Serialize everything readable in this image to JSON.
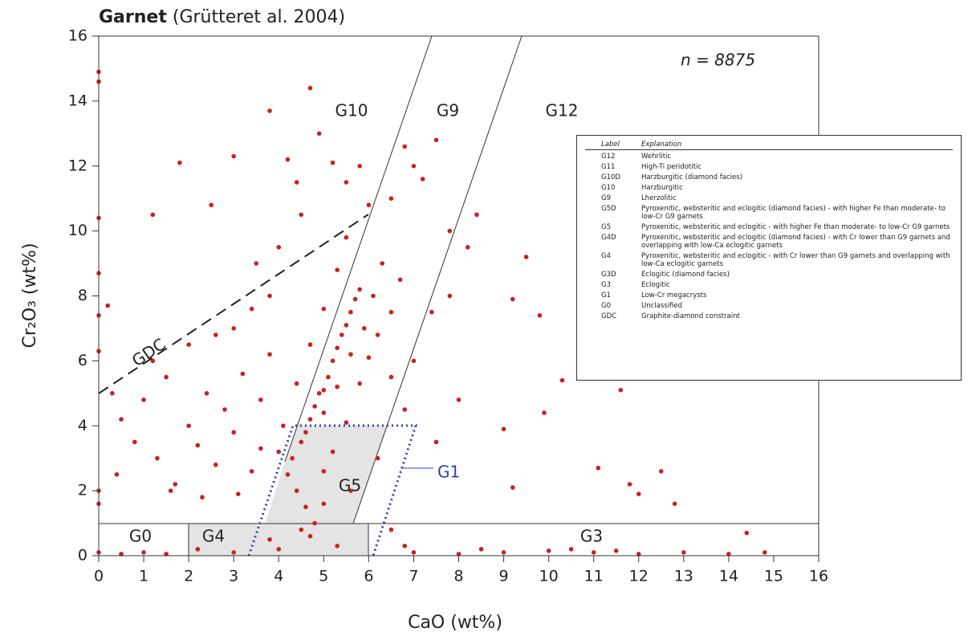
{
  "chart_data": {
    "type": "scatter",
    "title": "Garnet",
    "subtitle": "(Grütteret al. 2004)",
    "annotation": "n = 8875",
    "x_label": "CaO (wt%)",
    "y_label": "Cr₂O₃ (wt%)",
    "color": "#cc1f1f",
    "xlim": [
      0,
      16
    ],
    "ylim": [
      0,
      16
    ],
    "xticks": [
      0,
      1,
      2,
      3,
      4,
      5,
      6,
      7,
      8,
      9,
      10,
      11,
      12,
      13,
      14,
      15,
      16
    ],
    "yticks": [
      0,
      2,
      4,
      6,
      8,
      10,
      12,
      14,
      16
    ],
    "region_labels": [
      "G10",
      "G9",
      "G12",
      "GDC",
      "G5",
      "G1",
      "G0",
      "G4",
      "G3"
    ],
    "x": [
      4.5,
      4.7,
      5.0,
      5.2,
      5.4,
      5.6,
      5.8,
      4.3,
      4.8,
      5.1,
      5.3,
      5.5,
      5.7,
      4.6,
      4.9,
      5.0,
      5.3,
      5.6,
      5.9,
      6.1,
      6.3,
      4.2,
      4.4,
      4.6,
      4.8,
      5.0,
      5.2,
      5.5,
      5.8,
      6.0,
      6.2,
      6.5,
      6.7,
      4.0,
      4.1,
      4.4,
      4.7,
      5.0,
      5.3,
      5.5,
      0.5,
      0.8,
      1.0,
      1.3,
      1.5,
      1.7,
      2.0,
      2.2,
      2.4,
      2.6,
      2.8,
      3.0,
      3.2,
      3.4,
      3.6,
      3.8,
      1.2,
      2.0,
      2.6,
      3.0,
      3.4,
      3.8,
      1.6,
      0.4,
      0.3,
      2.3,
      3.1,
      3.6,
      3.5,
      4.0,
      4.5,
      4.2,
      4.7,
      3.0,
      2.5,
      4.9,
      5.5,
      5.8,
      6.5,
      7.0,
      7.2,
      6.8,
      7.5,
      7.8,
      6.0,
      1.2,
      1.8,
      3.8,
      4.4,
      5.2,
      6.5,
      7.0,
      7.4,
      6.8,
      7.8,
      8.2,
      8.4,
      7.5,
      8.0,
      6.2,
      9.2,
      9.5,
      9.8,
      10.3,
      11.0,
      11.6,
      9.0,
      9.9,
      11.1,
      11.8,
      12.5,
      12.8,
      9.2,
      12.0,
      4.7,
      5.0,
      5.3,
      4.5,
      5.6,
      3.8,
      6.5,
      2.2,
      3.0,
      4.0,
      0,
      0.5,
      1.0,
      1.5,
      7.0,
      8.0,
      9.0,
      10.0,
      10.5,
      11.0,
      11.5,
      12.0,
      13.0,
      14.0,
      14.4,
      14.8,
      8.5,
      6.8,
      0,
      0,
      0,
      0,
      0,
      0,
      0,
      0,
      0.2
    ],
    "values": [
      3.5,
      4.2,
      5.1,
      6.0,
      6.8,
      7.5,
      8.2,
      3.0,
      4.6,
      5.5,
      6.4,
      7.1,
      7.9,
      3.8,
      5.0,
      4.4,
      5.2,
      6.2,
      7.0,
      8.0,
      9.0,
      2.5,
      2.0,
      1.5,
      1.0,
      2.6,
      3.2,
      4.1,
      5.3,
      6.1,
      6.8,
      7.5,
      8.5,
      3.2,
      4.0,
      5.3,
      6.5,
      7.6,
      8.8,
      9.8,
      4.2,
      3.5,
      4.8,
      3.0,
      5.5,
      2.2,
      4.0,
      3.4,
      5.0,
      2.8,
      4.5,
      3.8,
      5.6,
      2.6,
      4.8,
      6.2,
      6.0,
      6.5,
      6.8,
      7.0,
      7.6,
      8.0,
      2.0,
      2.5,
      5.0,
      1.8,
      1.9,
      3.3,
      9.0,
      9.5,
      10.5,
      12.2,
      14.4,
      12.3,
      10.8,
      13.0,
      11.5,
      12.0,
      11.0,
      12.0,
      11.6,
      12.6,
      12.8,
      10.0,
      10.8,
      10.5,
      12.1,
      13.7,
      11.5,
      12.1,
      5.5,
      6.0,
      7.5,
      4.5,
      8.0,
      9.5,
      10.5,
      3.5,
      4.8,
      3.0,
      7.9,
      9.2,
      7.4,
      5.4,
      5.5,
      5.1,
      3.9,
      4.4,
      2.7,
      2.2,
      2.6,
      1.6,
      2.1,
      1.9,
      0.6,
      1.6,
      0.3,
      0.8,
      2.0,
      0.5,
      0.8,
      0.2,
      0.1,
      0.2,
      0.1,
      0.05,
      0.1,
      0.05,
      0.1,
      0.05,
      0.1,
      0.15,
      0.2,
      0.1,
      0.15,
      0.05,
      0.1,
      0.05,
      0.7,
      0.1,
      0.2,
      0.3,
      14.9,
      14.6,
      10.4,
      8.7,
      7.4,
      6.3,
      2.0,
      1.6,
      7.7
    ]
  },
  "legend_table": {
    "header": [
      "Label",
      "Explanation"
    ],
    "rows": [
      [
        "G12",
        "Wehrlitic"
      ],
      [
        "G11",
        "High-Ti peridotitic"
      ],
      [
        "G10D",
        "Harzburgitic (diamond facies)"
      ],
      [
        "G10",
        "Harzburgitic"
      ],
      [
        "G9",
        "Lherzolitic"
      ],
      [
        "G5D",
        "Pyroxenitic, websteritic and eclogitic (diamond facies) - with higher Fe than moderate- to low-Cr G9 garnets"
      ],
      [
        "G5",
        "Pyroxenitic, websteritic and eclogitic - with higher Fe than moderate- to low-Cr G9 garnets"
      ],
      [
        "G4D",
        "Pyroxenitic, websteritic and eclogitic (diamond facies) - with Cr lower than G9 garnets and overlapping with low-Ca eclogitic garnets"
      ],
      [
        "G4",
        "Pyroxenitic, websteritic and eclogitic - with Cr lower than G9 garnets and overlapping with low-Ca eclogitic garnets"
      ],
      [
        "G3D",
        "Eclogitic (diamond facies)"
      ],
      [
        "G3",
        "Eclogitic"
      ],
      [
        "G1",
        "Low-Cr megacrysts"
      ],
      [
        "G0",
        "Unclassified"
      ],
      [
        "GDC",
        "Graphite-diamond constraint"
      ]
    ]
  }
}
